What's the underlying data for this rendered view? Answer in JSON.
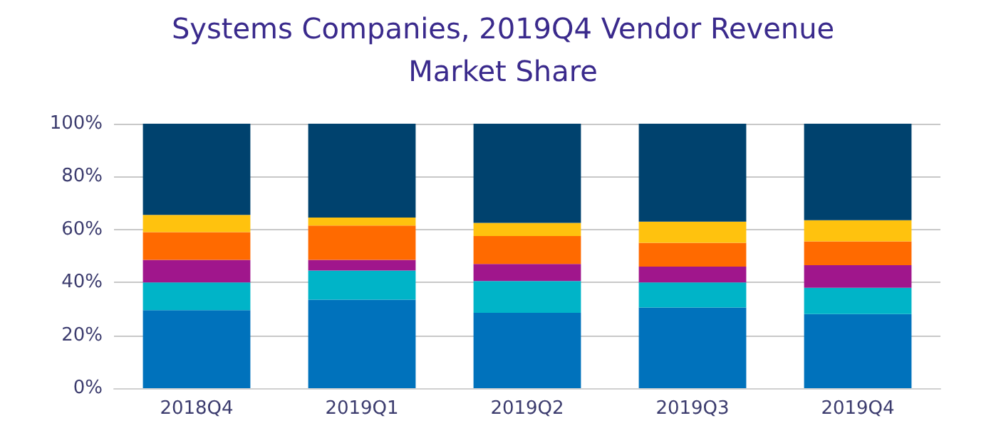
{
  "chart_data": {
    "type": "bar",
    "stacked": true,
    "title": "Systems Companies, 2019Q4 Vendor Revenue\nMarket Share",
    "categories": [
      "2018Q4",
      "2019Q1",
      "2019Q2",
      "2019Q3",
      "2019Q4"
    ],
    "series": [
      {
        "color": "#0072bc",
        "values": [
          29.5,
          33.5,
          28.5,
          30.5,
          28
        ]
      },
      {
        "color": "#00b4c8",
        "values": [
          10.5,
          11,
          12,
          9.5,
          10
        ]
      },
      {
        "color": "#a0168c",
        "values": [
          8.5,
          4,
          6.5,
          6,
          8.5
        ]
      },
      {
        "color": "#ff6a00",
        "values": [
          10.5,
          13,
          10.5,
          9,
          9
        ]
      },
      {
        "color": "#ffc20e",
        "values": [
          6.5,
          3,
          5,
          8,
          8
        ]
      },
      {
        "color": "#00426e",
        "values": [
          34.5,
          35.5,
          37.5,
          37,
          36.5
        ]
      }
    ],
    "ylim": [
      0,
      100
    ],
    "yticks": [
      {
        "value": 0,
        "label": "0%"
      },
      {
        "value": 20,
        "label": "20%"
      },
      {
        "value": 40,
        "label": "40%"
      },
      {
        "value": 60,
        "label": "60%"
      },
      {
        "value": 80,
        "label": "80%"
      },
      {
        "value": 100,
        "label": "100%"
      }
    ],
    "grid": "y"
  }
}
